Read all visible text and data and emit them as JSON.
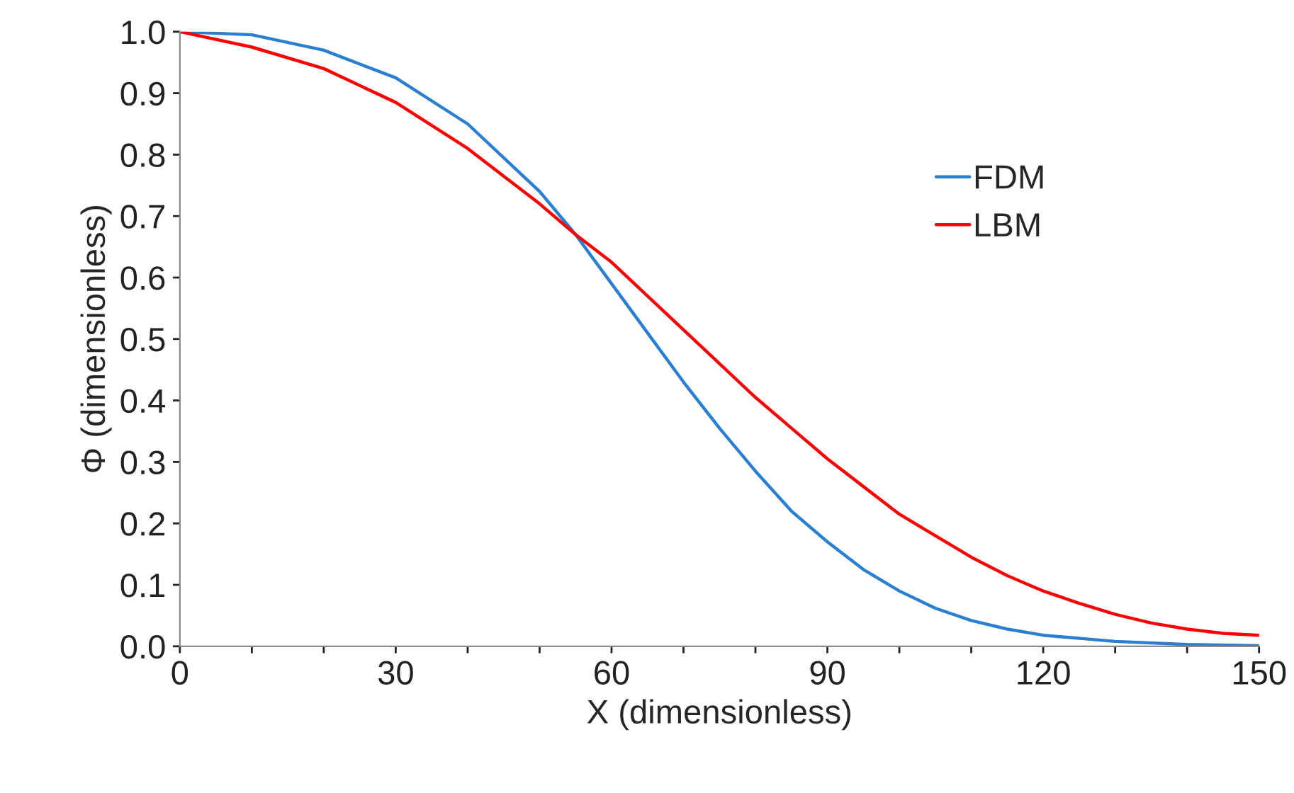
{
  "chart_data": {
    "type": "line",
    "xlabel": "X (dimensionless)",
    "ylabel": "Φ (dimensionless)",
    "xlim": [
      0,
      150
    ],
    "ylim": [
      0,
      1.0
    ],
    "xticks": [
      0,
      {
        "value": 10,
        "label": null
      },
      {
        "value": 20,
        "label": null
      },
      30,
      {
        "value": 40,
        "label": null
      },
      {
        "value": 50,
        "label": null
      },
      60,
      {
        "value": 70,
        "label": null
      },
      {
        "value": 80,
        "label": null
      },
      90,
      {
        "value": 100,
        "label": null
      },
      {
        "value": 110,
        "label": null
      },
      120,
      {
        "value": 130,
        "label": null
      },
      {
        "value": 140,
        "label": null
      },
      150
    ],
    "yticks": [
      {
        "value": 0,
        "label": "0.0"
      },
      0.1,
      0.2,
      0.3,
      0.4,
      0.5,
      0.6,
      0.7,
      0.8,
      0.9,
      {
        "value": 1.0,
        "label": "1.0"
      }
    ],
    "grid": false,
    "legend": "right",
    "marker": "none",
    "line_style": "solid",
    "series": [
      {
        "name": "FDM",
        "color": "#2a7fd0",
        "x": [
          0,
          10,
          20,
          30,
          40,
          50,
          55,
          60,
          65,
          70,
          75,
          80,
          85,
          90,
          95,
          100,
          105,
          110,
          115,
          120,
          130,
          140,
          150
        ],
        "values": [
          1.0,
          0.995,
          0.97,
          0.925,
          0.85,
          0.74,
          0.67,
          0.59,
          0.51,
          0.43,
          0.355,
          0.285,
          0.22,
          0.17,
          0.125,
          0.09,
          0.062,
          0.042,
          0.028,
          0.018,
          0.008,
          0.003,
          0.001
        ]
      },
      {
        "name": "LBM",
        "color": "#ff0000",
        "x": [
          0,
          10,
          20,
          30,
          40,
          50,
          55,
          60,
          65,
          70,
          75,
          80,
          85,
          90,
          95,
          100,
          105,
          110,
          115,
          120,
          125,
          130,
          135,
          140,
          145,
          150
        ],
        "values": [
          1.0,
          0.975,
          0.94,
          0.885,
          0.81,
          0.72,
          0.67,
          0.625,
          0.57,
          0.515,
          0.46,
          0.405,
          0.355,
          0.305,
          0.26,
          0.215,
          0.18,
          0.145,
          0.115,
          0.09,
          0.07,
          0.052,
          0.038,
          0.028,
          0.021,
          0.018
        ]
      }
    ]
  }
}
